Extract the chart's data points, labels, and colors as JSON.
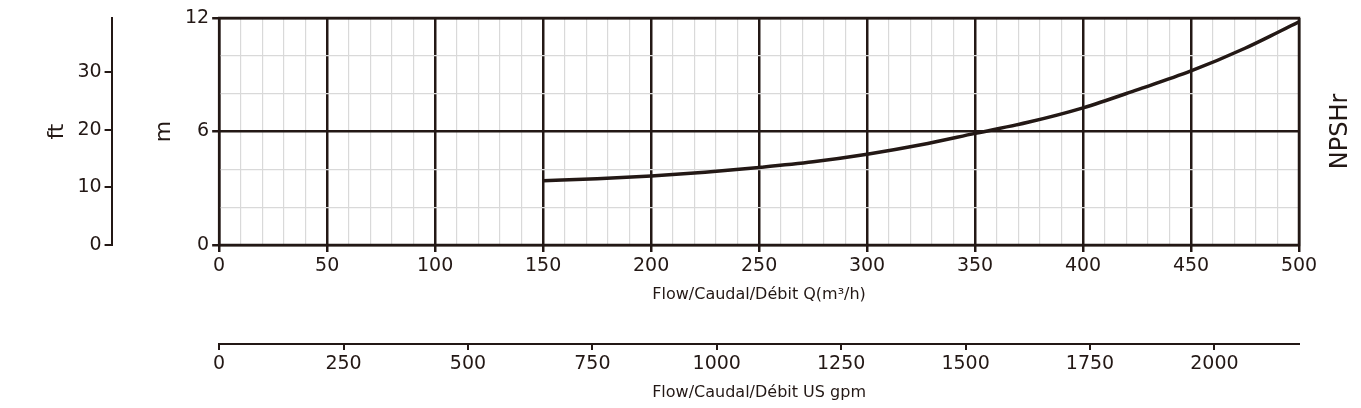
{
  "chart_data": {
    "type": "line",
    "title": "NPSHr",
    "xlabel": "Flow/Caudal/Débit Q(m³/h)",
    "ylabel": "m",
    "y2label": "ft",
    "x2label": "Flow/Caudal/Débit US gpm",
    "x": [
      150,
      175,
      200,
      225,
      250,
      275,
      300,
      325,
      350,
      375,
      400,
      425,
      450,
      475,
      500
    ],
    "series": [
      {
        "color": "#231815",
        "values": [
          3.4,
          3.5,
          3.65,
          3.85,
          4.1,
          4.4,
          4.8,
          5.3,
          5.9,
          6.5,
          7.25,
          8.2,
          9.2,
          10.4,
          11.8
        ]
      }
    ],
    "xlim": [
      0,
      500
    ],
    "xticks": [
      0,
      {
        "value": 10,
        "label": null
      },
      {
        "value": 20,
        "label": null
      },
      {
        "value": 30,
        "label": null
      },
      {
        "value": 40,
        "label": null
      },
      50,
      {
        "value": 60,
        "label": null
      },
      {
        "value": 70,
        "label": null
      },
      {
        "value": 80,
        "label": null
      },
      {
        "value": 90,
        "label": null
      },
      100,
      {
        "value": 110,
        "label": null
      },
      {
        "value": 120,
        "label": null
      },
      {
        "value": 130,
        "label": null
      },
      {
        "value": 140,
        "label": null
      },
      150,
      {
        "value": 160,
        "label": null
      },
      {
        "value": 170,
        "label": null
      },
      {
        "value": 180,
        "label": null
      },
      {
        "value": 190,
        "label": null
      },
      200,
      {
        "value": 210,
        "label": null
      },
      {
        "value": 220,
        "label": null
      },
      {
        "value": 230,
        "label": null
      },
      {
        "value": 240,
        "label": null
      },
      250,
      {
        "value": 260,
        "label": null
      },
      {
        "value": 270,
        "label": null
      },
      {
        "value": 280,
        "label": null
      },
      {
        "value": 290,
        "label": null
      },
      300,
      {
        "value": 310,
        "label": null
      },
      {
        "value": 320,
        "label": null
      },
      {
        "value": 330,
        "label": null
      },
      {
        "value": 340,
        "label": null
      },
      350,
      {
        "value": 360,
        "label": null
      },
      {
        "value": 370,
        "label": null
      },
      {
        "value": 380,
        "label": null
      },
      {
        "value": 390,
        "label": null
      },
      400,
      {
        "value": 410,
        "label": null
      },
      {
        "value": 420,
        "label": null
      },
      {
        "value": 430,
        "label": null
      },
      {
        "value": 440,
        "label": null
      },
      450,
      {
        "value": 460,
        "label": null
      },
      {
        "value": 470,
        "label": null
      },
      {
        "value": 480,
        "label": null
      },
      {
        "value": 490,
        "label": null
      },
      500
    ],
    "ylim": [
      0,
      12
    ],
    "yticks": [
      0,
      {
        "value": 2,
        "label": null
      },
      {
        "value": 4,
        "label": null
      },
      6,
      {
        "value": 8,
        "label": null
      },
      {
        "value": 10,
        "label": null
      },
      12
    ],
    "y2lim": [
      0,
      39.37
    ],
    "y2ticks": [
      0,
      10,
      20,
      30
    ],
    "x2lim": [
      0,
      2170
    ],
    "x2ticks": [
      0,
      250,
      500,
      750,
      1000,
      1250,
      1500,
      1750,
      2000
    ],
    "grid": true,
    "marker": "none",
    "line_style": "solid"
  }
}
